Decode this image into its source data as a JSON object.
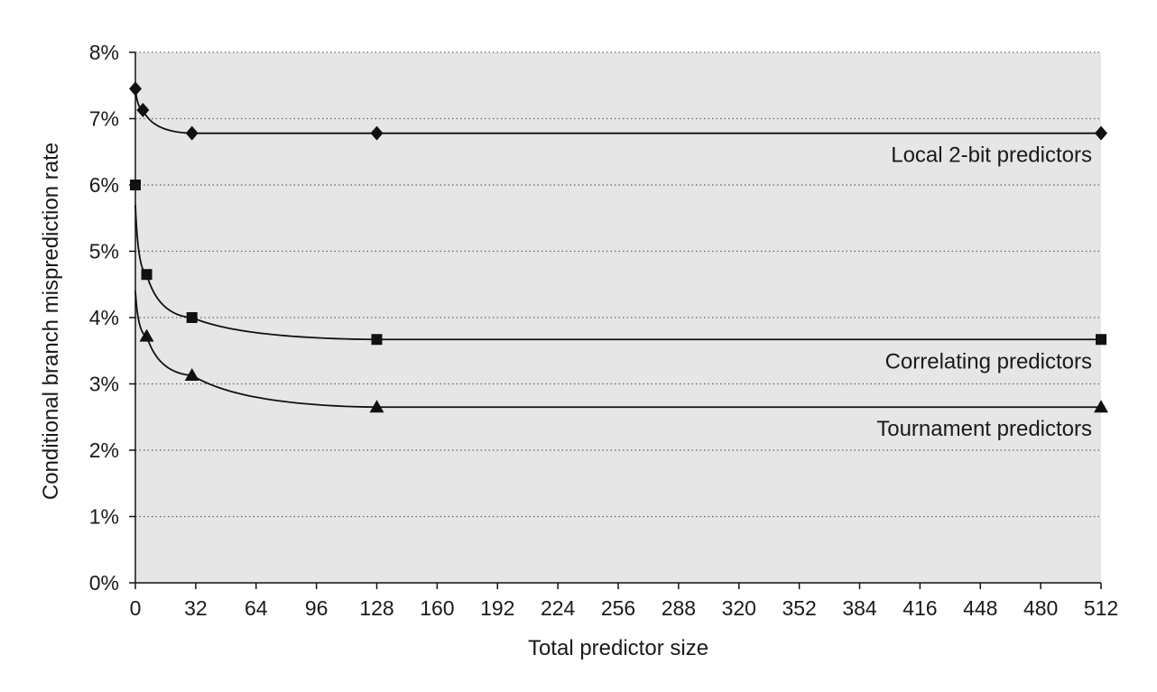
{
  "chart_data": {
    "type": "line",
    "title": "",
    "xlabel": "Total predictor size",
    "ylabel": "Conditional branch misprediction rate",
    "xlim": [
      0,
      512
    ],
    "ylim": [
      0,
      8
    ],
    "x_ticks": [
      "0",
      "32",
      "64",
      "96",
      "128",
      "160",
      "192",
      "224",
      "256",
      "288",
      "320",
      "352",
      "384",
      "416",
      "448",
      "480",
      "512"
    ],
    "y_ticks": [
      "0%",
      "1%",
      "2%",
      "3%",
      "4%",
      "5%",
      "6%",
      "7%",
      "8%"
    ],
    "grid": "horizontal-dotted",
    "legend": "inline-labels",
    "colors": {
      "plot_background": "#e6e6e6",
      "line": "#111111",
      "grid": "#666666"
    },
    "series": [
      {
        "name": "Local 2-bit predictors",
        "marker": "diamond",
        "x": [
          0,
          4,
          30,
          128,
          512
        ],
        "y": [
          7.45,
          7.13,
          6.78,
          6.78,
          6.78
        ]
      },
      {
        "name": "Correlating predictors",
        "marker": "square",
        "x": [
          0,
          6,
          30,
          128,
          512
        ],
        "y": [
          6.0,
          4.65,
          4.0,
          3.67,
          3.67
        ]
      },
      {
        "name": "Tournament predictors",
        "marker": "triangle",
        "x": [
          6,
          30,
          128,
          512
        ],
        "y": [
          3.72,
          3.13,
          2.65,
          2.65
        ]
      }
    ]
  }
}
